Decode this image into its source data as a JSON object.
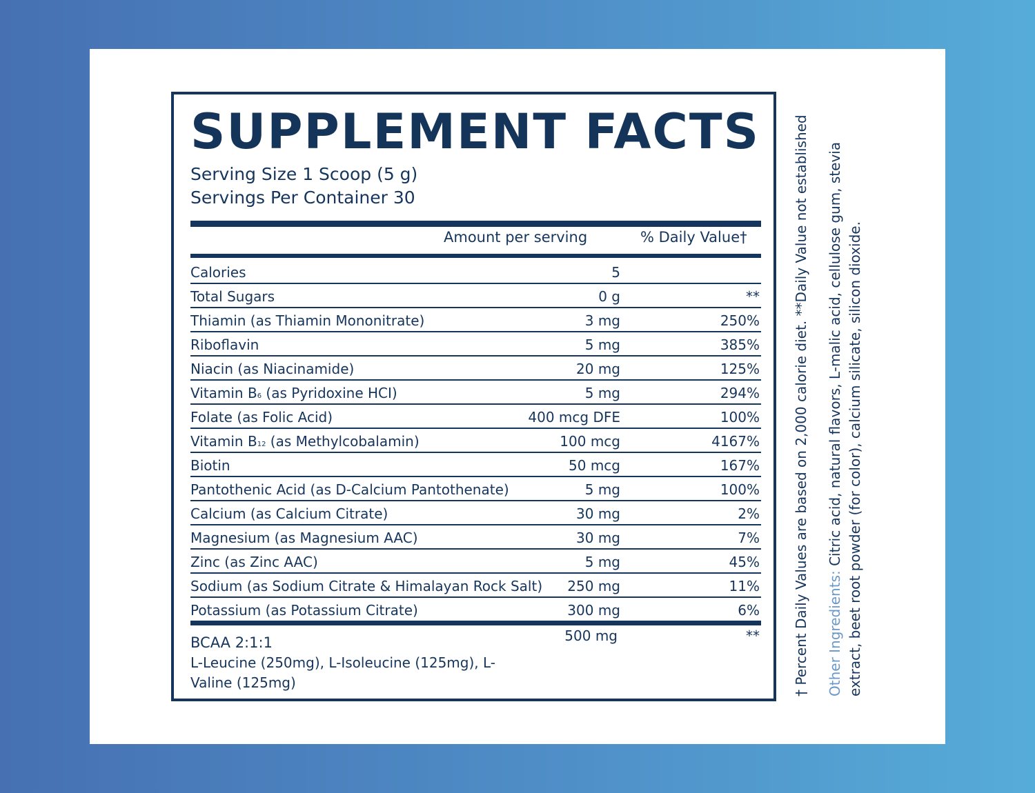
{
  "title": {
    "word1": "SUPPLEMENT",
    "word2": "FACTS"
  },
  "serving_size": "Serving Size 1 Scoop (5 g)",
  "servings_per_container": "Servings Per Container 30",
  "column_headers": {
    "amount": "Amount per serving",
    "daily_value": "% Daily Value†"
  },
  "nutrients": [
    {
      "name": "Calories",
      "amount": "5",
      "dv": ""
    },
    {
      "name": "Total Sugars",
      "amount": "0 g",
      "dv": "**"
    },
    {
      "name": "Thiamin (as Thiamin Mononitrate)",
      "amount": "3 mg",
      "dv": "250%"
    },
    {
      "name": "Riboflavin",
      "amount": "5 mg",
      "dv": "385%"
    },
    {
      "name": "Niacin (as Niacinamide)",
      "amount": "20 mg",
      "dv": "125%"
    },
    {
      "name_prefix": "Vitamin B",
      "name_sub": "6",
      "name_suffix": " (as Pyridoxine HCI)",
      "amount": "5 mg",
      "dv": "294%"
    },
    {
      "name": "Folate (as Folic Acid)",
      "amount": "400 mcg DFE",
      "dv": "100%"
    },
    {
      "name_prefix": "Vitamin B",
      "name_sub": "12",
      "name_suffix": " (as Methylcobalamin)",
      "amount": "100 mcg",
      "dv": "4167%"
    },
    {
      "name": "Biotin",
      "amount": "50 mcg",
      "dv": "167%"
    },
    {
      "name": "Pantothenic Acid (as D-Calcium Pantothenate)",
      "amount": "5 mg",
      "dv": "100%"
    },
    {
      "name": "Calcium (as Calcium Citrate)",
      "amount": "30 mg",
      "dv": "2%"
    },
    {
      "name": "Magnesium (as Magnesium AAC)",
      "amount": "30 mg",
      "dv": "7%"
    },
    {
      "name": "Zinc (as Zinc AAC)",
      "amount": "5 mg",
      "dv": "45%"
    },
    {
      "name": "Sodium (as Sodium Citrate & Himalayan Rock Salt)",
      "amount": "250 mg",
      "dv": "11%"
    },
    {
      "name": "Potassium (as Potassium Citrate)",
      "amount": "300 mg",
      "dv": "6%"
    }
  ],
  "bcaa": {
    "name": "BCAA 2:1:1",
    "description": "L-Leucine (250mg), L-Isoleucine (125mg), L-Valine (125mg)",
    "amount": "500 mg",
    "dv": "**"
  },
  "footnote": "† Percent Daily Values are based on 2,000 calorie diet. **Daily Value not established",
  "other_ingredients": {
    "label": "Other Ingredients:",
    "text": " Citric acid, natural flavors, L-malic acid, cellulose gum, stevia extract, beet root powder (for color), calcium silicate, silicon dioxide."
  },
  "colors": {
    "ink": "#16355c",
    "label_accent": "#6a98c8",
    "card": "#ffffff",
    "bg_left": "#4670b2",
    "bg_right": "#56acd8"
  }
}
